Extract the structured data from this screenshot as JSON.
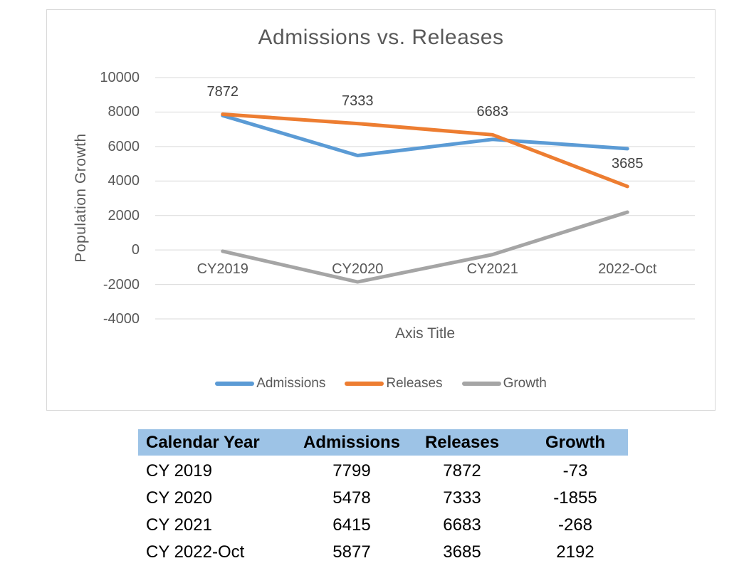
{
  "chart": {
    "title": "Admissions vs. Releases",
    "y_axis_title": "Population Growth",
    "x_axis_title": "Axis Title"
  },
  "chart_data": {
    "type": "line",
    "title": "Admissions vs. Releases",
    "xlabel": "Axis Title",
    "ylabel": "Population Growth",
    "categories": [
      "CY2019",
      "CY2020",
      "CY2021",
      "2022-Oct"
    ],
    "series": [
      {
        "name": "Admissions",
        "color": "#5B9BD5",
        "values": [
          7799,
          5478,
          6415,
          5877
        ],
        "data_labels": false
      },
      {
        "name": "Releases",
        "color": "#ED7D31",
        "values": [
          7872,
          7333,
          6683,
          3685
        ],
        "data_labels": true
      },
      {
        "name": "Growth",
        "color": "#A5A5A5",
        "values": [
          -73,
          -1855,
          -268,
          2192
        ],
        "data_labels": false
      }
    ],
    "ylim": [
      -4000,
      10000
    ],
    "ytick_step": 2000,
    "grid": true,
    "legend_position": "bottom",
    "gridline_color": "#D9D9D9",
    "axis_text_color": "#595959",
    "data_label_color": "#404040",
    "line_width": 5
  },
  "table": {
    "header_bg": "#9DC3E6",
    "headers": [
      "Calendar Year",
      "Admissions",
      "Releases",
      "Growth"
    ],
    "rows": [
      [
        "CY 2019",
        "7799",
        "7872",
        "-73"
      ],
      [
        "CY 2020",
        "5478",
        "7333",
        "-1855"
      ],
      [
        "CY 2021",
        "6415",
        "6683",
        "-268"
      ],
      [
        "CY 2022-Oct",
        "5877",
        "3685",
        "2192"
      ]
    ]
  }
}
